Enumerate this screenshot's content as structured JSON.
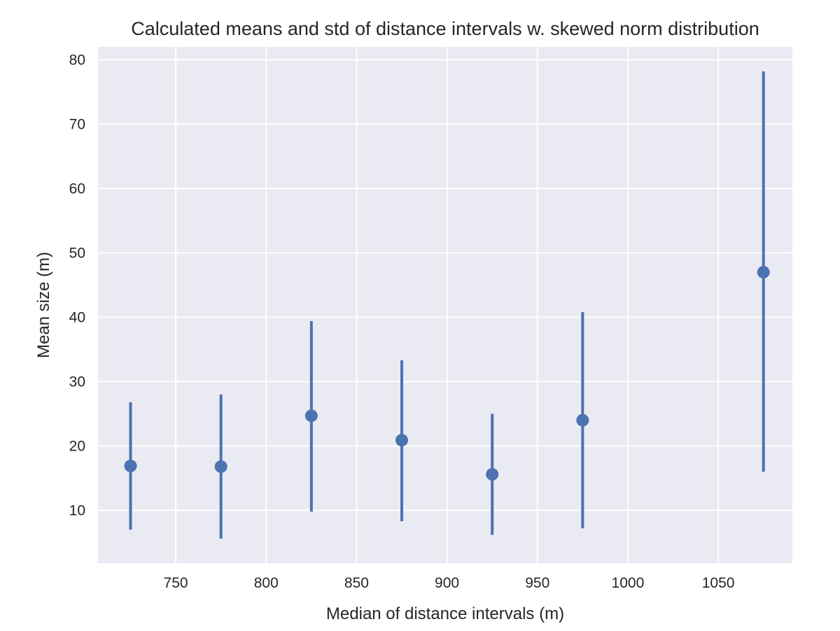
{
  "chart_data": {
    "type": "scatter",
    "title": "Calculated means and std of distance intervals w. skewed norm distribution",
    "xlabel": "Median of distance intervals (m)",
    "ylabel": "Mean size (m)",
    "xlim": [
      707,
      1091
    ],
    "ylim": [
      1.8,
      82
    ],
    "xticks": [
      750,
      800,
      850,
      900,
      950,
      1000,
      1050
    ],
    "yticks": [
      10,
      20,
      30,
      40,
      50,
      60,
      70,
      80
    ],
    "grid": true,
    "points": [
      {
        "x": 725,
        "y": 16.9,
        "low": 7.0,
        "high": 26.8
      },
      {
        "x": 775,
        "y": 16.8,
        "low": 5.6,
        "high": 28.0
      },
      {
        "x": 825,
        "y": 24.7,
        "low": 9.8,
        "high": 39.4
      },
      {
        "x": 875,
        "y": 20.9,
        "low": 8.3,
        "high": 33.3
      },
      {
        "x": 925,
        "y": 15.6,
        "low": 6.2,
        "high": 25.0
      },
      {
        "x": 975,
        "y": 24.0,
        "low": 7.2,
        "high": 40.8
      },
      {
        "x": 1075,
        "y": 47.0,
        "low": 16.0,
        "high": 78.2
      }
    ],
    "colors": {
      "marker": "#4c72b0",
      "background": "#eaeaf2",
      "grid": "#ffffff",
      "text": "#262626"
    }
  }
}
